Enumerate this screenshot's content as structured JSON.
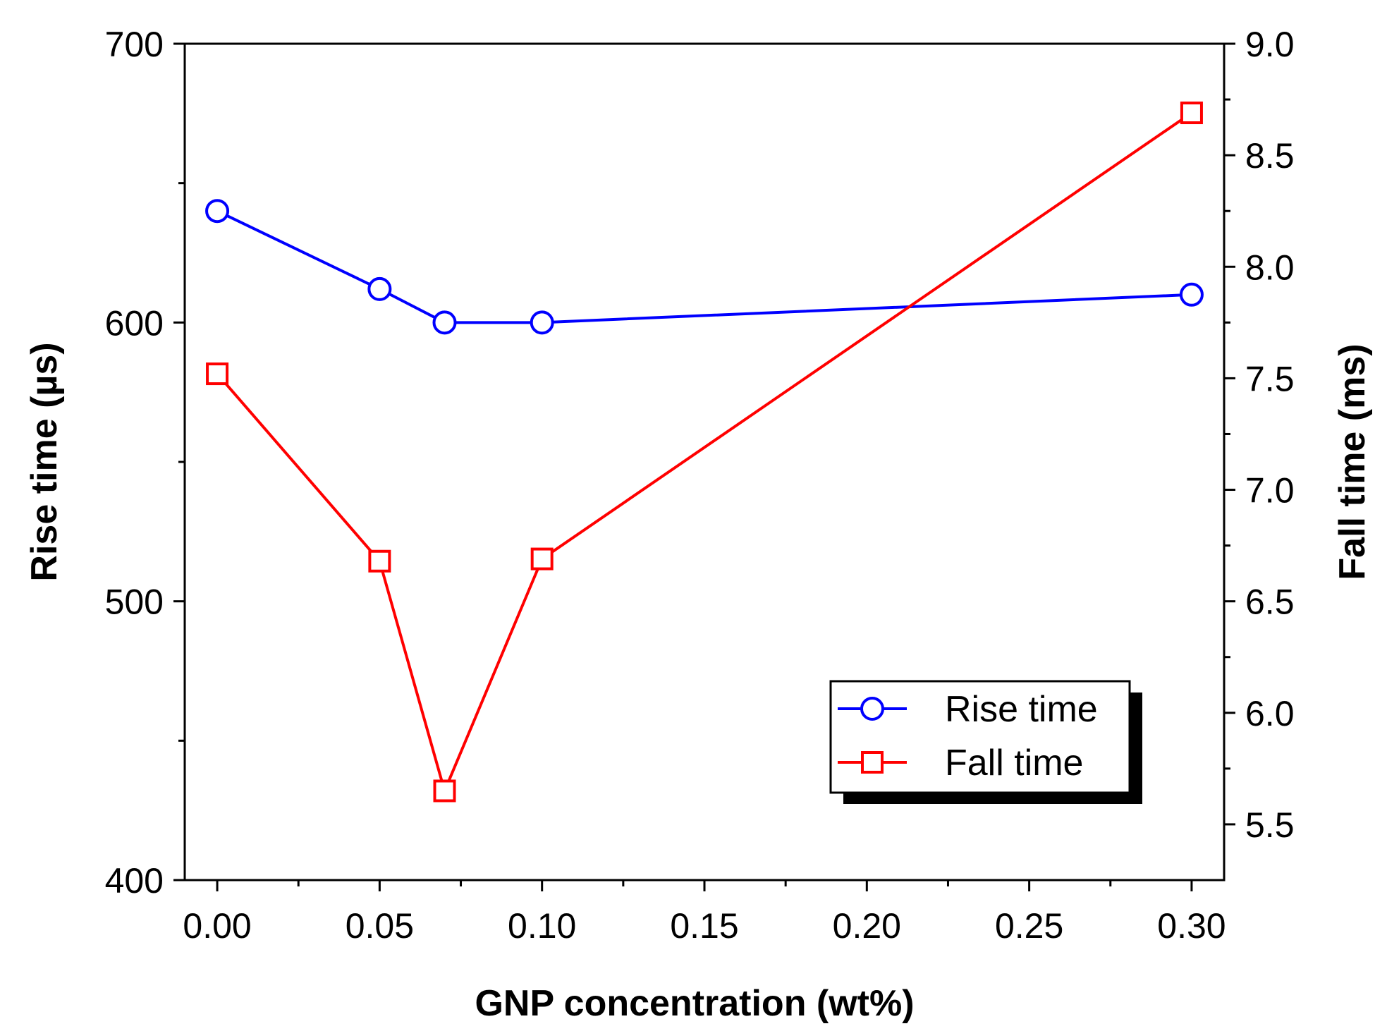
{
  "chart_data": {
    "type": "line",
    "xlabel": "GNP concentration (wt%)",
    "ylabel_left": "Rise time (µs)",
    "ylabel_right": "Fall time (ms)",
    "xlim": [
      -0.01,
      0.31
    ],
    "ylim_left": [
      400,
      700
    ],
    "ylim_right": [
      5.25,
      9.0
    ],
    "x_ticks": [
      "0.00",
      "0.05",
      "0.10",
      "0.15",
      "0.20",
      "0.25",
      "0.30"
    ],
    "x_tick_values": [
      0.0,
      0.05,
      0.1,
      0.15,
      0.2,
      0.25,
      0.3
    ],
    "y_left_ticks": [
      "400",
      "500",
      "600",
      "700"
    ],
    "y_left_tick_values": [
      400,
      500,
      600,
      700
    ],
    "y_right_ticks": [
      "5.5",
      "6.0",
      "6.5",
      "7.0",
      "7.5",
      "8.0",
      "8.5",
      "9.0"
    ],
    "y_right_tick_values": [
      5.5,
      6.0,
      6.5,
      7.0,
      7.5,
      8.0,
      8.5,
      9.0
    ],
    "series": [
      {
        "name": "Rise time",
        "axis": "left",
        "color": "#0000ff",
        "marker": "circle",
        "x": [
          0.0,
          0.05,
          0.07,
          0.1,
          0.3
        ],
        "y": [
          640,
          612,
          600,
          600,
          610
        ]
      },
      {
        "name": "Fall time",
        "axis": "right",
        "color": "#ff0000",
        "marker": "square",
        "x": [
          0.0,
          0.05,
          0.07,
          0.1,
          0.3
        ],
        "y": [
          7.52,
          6.68,
          5.65,
          6.69,
          8.69
        ]
      }
    ],
    "legend": {
      "position": "lower-right",
      "entries": [
        "Rise time",
        "Fall time"
      ]
    },
    "grid": false
  }
}
